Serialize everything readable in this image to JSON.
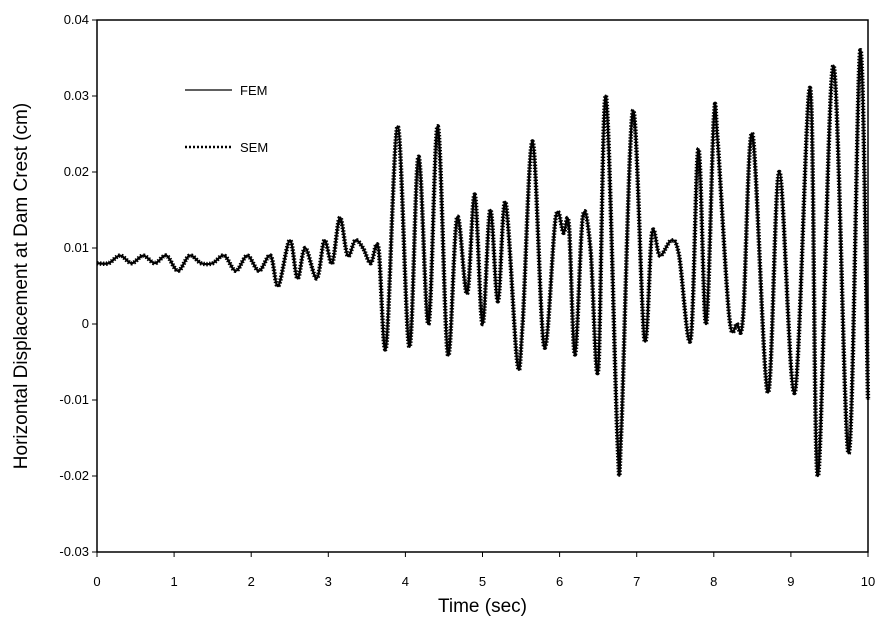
{
  "chart_data": {
    "type": "line",
    "xlabel": "Time (sec)",
    "ylabel": "Horizontal Displacement at Dam Crest (cm)",
    "xlim": [
      0,
      10
    ],
    "ylim": [
      -0.03,
      0.04
    ],
    "x_ticks": [
      "0",
      "1",
      "2",
      "3",
      "4",
      "5",
      "6",
      "7",
      "8",
      "9",
      "10"
    ],
    "y_ticks": [
      "-0.03",
      "-0.02",
      "-0.01",
      "0",
      "0.01",
      "0.02",
      "0.03",
      "0.04"
    ],
    "grid": false,
    "legend_position": "top-left",
    "series": [
      {
        "name": "FEM",
        "style": "solid",
        "color": "#000000",
        "x": [
          0,
          0.15,
          0.3,
          0.45,
          0.6,
          0.75,
          0.9,
          1.05,
          1.2,
          1.35,
          1.5,
          1.65,
          1.8,
          1.95,
          2.1,
          2.25,
          2.35,
          2.5,
          2.6,
          2.7,
          2.85,
          2.95,
          3.05,
          3.15,
          3.25,
          3.35,
          3.45,
          3.55,
          3.65,
          3.75,
          3.9,
          4.05,
          4.17,
          4.3,
          4.42,
          4.55,
          4.67,
          4.8,
          4.9,
          5.0,
          5.1,
          5.2,
          5.3,
          5.45,
          5.52,
          5.65,
          5.8,
          5.95,
          6.05,
          6.12,
          6.2,
          6.3,
          6.4,
          6.5,
          6.6,
          6.75,
          6.8,
          6.95,
          7.1,
          7.2,
          7.3,
          7.45,
          7.55,
          7.7,
          7.8,
          7.9,
          8.0,
          8.05,
          8.2,
          8.3,
          8.38,
          8.5,
          8.7,
          8.85,
          9.05,
          9.25,
          9.35,
          9.55,
          9.75,
          9.9,
          10.0
        ],
        "y": [
          0.008,
          0.008,
          0.009,
          0.008,
          0.009,
          0.008,
          0.009,
          0.007,
          0.009,
          0.008,
          0.008,
          0.009,
          0.007,
          0.009,
          0.007,
          0.009,
          0.005,
          0.011,
          0.006,
          0.01,
          0.006,
          0.011,
          0.008,
          0.014,
          0.009,
          0.011,
          0.01,
          0.008,
          0.01,
          -0.003,
          0.026,
          -0.003,
          0.022,
          0.0,
          0.026,
          -0.004,
          0.014,
          0.004,
          0.017,
          0.0,
          0.015,
          0.003,
          0.016,
          -0.005,
          0.0,
          0.024,
          -0.003,
          0.014,
          0.012,
          0.013,
          -0.004,
          0.014,
          0.01,
          -0.006,
          0.03,
          -0.015,
          -0.014,
          0.028,
          -0.002,
          0.012,
          0.009,
          0.011,
          0.009,
          -0.002,
          0.023,
          0.0,
          0.027,
          0.024,
          0.001,
          0.0,
          0.001,
          0.025,
          -0.009,
          0.02,
          -0.009,
          0.031,
          -0.02,
          0.034,
          -0.017,
          0.036,
          -0.01
        ]
      },
      {
        "name": "SEM",
        "style": "dotted",
        "color": "#000000",
        "x": [
          0,
          0.15,
          0.3,
          0.45,
          0.6,
          0.75,
          0.9,
          1.05,
          1.2,
          1.35,
          1.5,
          1.65,
          1.8,
          1.95,
          2.1,
          2.25,
          2.35,
          2.5,
          2.6,
          2.7,
          2.85,
          2.95,
          3.05,
          3.15,
          3.25,
          3.35,
          3.45,
          3.55,
          3.65,
          3.75,
          3.9,
          4.05,
          4.17,
          4.3,
          4.42,
          4.55,
          4.67,
          4.8,
          4.9,
          5.0,
          5.1,
          5.2,
          5.3,
          5.45,
          5.52,
          5.65,
          5.8,
          5.95,
          6.05,
          6.12,
          6.2,
          6.3,
          6.4,
          6.5,
          6.6,
          6.75,
          6.8,
          6.95,
          7.1,
          7.2,
          7.3,
          7.45,
          7.55,
          7.7,
          7.8,
          7.9,
          8.0,
          8.05,
          8.2,
          8.3,
          8.38,
          8.5,
          8.7,
          8.85,
          9.05,
          9.25,
          9.35,
          9.55,
          9.75,
          9.9,
          10.0
        ],
        "y": [
          0.008,
          0.008,
          0.009,
          0.008,
          0.009,
          0.008,
          0.009,
          0.007,
          0.009,
          0.008,
          0.008,
          0.009,
          0.007,
          0.009,
          0.007,
          0.009,
          0.005,
          0.011,
          0.006,
          0.01,
          0.006,
          0.011,
          0.008,
          0.014,
          0.009,
          0.011,
          0.01,
          0.008,
          0.01,
          -0.003,
          0.026,
          -0.003,
          0.022,
          0.0,
          0.026,
          -0.004,
          0.014,
          0.004,
          0.017,
          0.0,
          0.015,
          0.003,
          0.016,
          -0.005,
          0.0,
          0.024,
          -0.003,
          0.014,
          0.012,
          0.013,
          -0.004,
          0.014,
          0.01,
          -0.006,
          0.03,
          -0.015,
          -0.014,
          0.028,
          -0.002,
          0.012,
          0.009,
          0.011,
          0.009,
          -0.002,
          0.023,
          0.0,
          0.027,
          0.024,
          0.001,
          0.0,
          0.001,
          0.025,
          -0.009,
          0.02,
          -0.009,
          0.031,
          -0.02,
          0.034,
          -0.017,
          0.036,
          -0.01
        ]
      }
    ]
  }
}
